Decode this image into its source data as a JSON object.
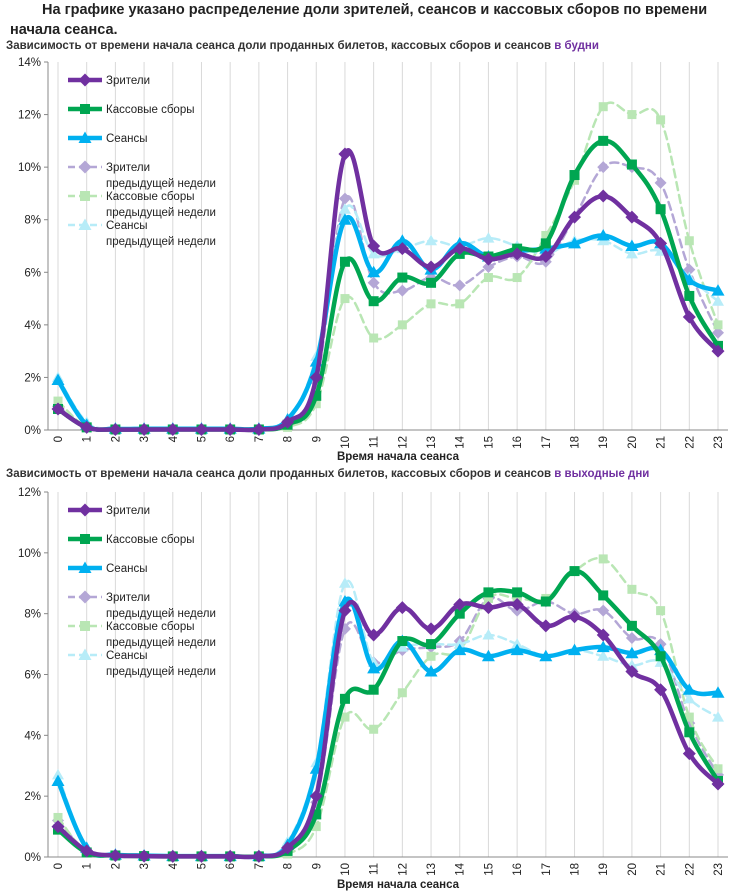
{
  "heading": "На графике указано распределение доли зрителей, сеансов и кассовых сборов по времени начала сеанса.",
  "chart_data": [
    {
      "type": "line",
      "title": "Зависимость от времени начала сеанса доли проданных билетов, кассовых сборов и сеансов",
      "title_accent": "в будни",
      "xlabel": "Время начала сеанса",
      "ylabel": "",
      "ylim": [
        0,
        14
      ],
      "yticks": [
        "0%",
        "2%",
        "4%",
        "6%",
        "8%",
        "10%",
        "12%",
        "14%"
      ],
      "categories": [
        "0",
        "1",
        "2",
        "3",
        "4",
        "5",
        "6",
        "7",
        "8",
        "9",
        "10",
        "11",
        "12",
        "13",
        "14",
        "15",
        "16",
        "17",
        "18",
        "19",
        "20",
        "21",
        "22",
        "23"
      ],
      "grid": "vertical",
      "legend": "top-left",
      "series": [
        {
          "name": "Зрители",
          "color": "#7030a0",
          "dashed": false,
          "marker": "diamond",
          "values": [
            0.8,
            0.1,
            0.02,
            0.02,
            0.02,
            0.02,
            0.02,
            0.02,
            0.3,
            2.0,
            10.5,
            7.0,
            6.9,
            6.2,
            6.9,
            6.5,
            6.7,
            6.6,
            8.1,
            8.9,
            8.1,
            7.1,
            4.3,
            3.0
          ]
        },
        {
          "name": "Кассовые сборы",
          "color": "#00a651",
          "dashed": false,
          "marker": "square",
          "values": [
            0.8,
            0.1,
            0.02,
            0.02,
            0.02,
            0.02,
            0.02,
            0.02,
            0.2,
            1.3,
            6.4,
            4.9,
            5.8,
            5.6,
            6.7,
            6.6,
            6.9,
            7.1,
            9.7,
            11.0,
            10.1,
            8.4,
            5.1,
            3.2
          ]
        },
        {
          "name": "Сеансы",
          "color": "#00b0f0",
          "dashed": false,
          "marker": "triangle",
          "values": [
            1.9,
            0.2,
            0.05,
            0.05,
            0.05,
            0.05,
            0.05,
            0.05,
            0.4,
            2.6,
            8.0,
            6.0,
            7.2,
            6.1,
            7.1,
            6.6,
            6.8,
            6.9,
            7.1,
            7.4,
            7.0,
            7.1,
            5.7,
            5.3
          ]
        },
        {
          "name": "Зрители предыдущей недели",
          "color": "#b4a7d6",
          "dashed": true,
          "marker": "diamond",
          "values": [
            0.9,
            0.1,
            0.02,
            0.02,
            0.02,
            0.02,
            0.02,
            0.02,
            0.2,
            1.8,
            8.8,
            5.6,
            5.3,
            5.8,
            5.5,
            6.2,
            6.6,
            6.4,
            8.1,
            10.0,
            10.0,
            9.4,
            6.1,
            3.7
          ]
        },
        {
          "name": "Кассовые сборы предыдущей недели",
          "color": "#b9e6b4",
          "dashed": true,
          "marker": "square",
          "values": [
            1.1,
            0.1,
            0.02,
            0.02,
            0.02,
            0.02,
            0.02,
            0.02,
            0.1,
            1.0,
            5.0,
            3.5,
            4.0,
            4.8,
            4.8,
            5.8,
            5.8,
            7.4,
            9.5,
            12.3,
            12.0,
            11.8,
            7.2,
            4.0
          ]
        },
        {
          "name": "Сеансы предыдущей недели",
          "color": "#b7ecf8",
          "dashed": true,
          "marker": "triangle",
          "values": [
            2.0,
            0.3,
            0.05,
            0.05,
            0.05,
            0.05,
            0.05,
            0.05,
            0.4,
            2.8,
            8.4,
            6.7,
            6.9,
            7.2,
            7.0,
            7.3,
            7.0,
            6.7,
            7.2,
            7.2,
            6.7,
            6.8,
            5.8,
            4.9
          ]
        }
      ]
    },
    {
      "type": "line",
      "title": "Зависимость от времени начала сеанса доли проданных билетов, кассовых сборов и сеансов",
      "title_accent": "в выходные дни",
      "xlabel": "Время начала сеанса",
      "ylabel": "",
      "ylim": [
        0,
        12
      ],
      "yticks": [
        "0%",
        "2%",
        "4%",
        "6%",
        "8%",
        "10%",
        "12%"
      ],
      "categories": [
        "0",
        "1",
        "2",
        "3",
        "4",
        "5",
        "6",
        "7",
        "8",
        "9",
        "10",
        "11",
        "12",
        "13",
        "14",
        "15",
        "16",
        "17",
        "18",
        "19",
        "20",
        "21",
        "22",
        "23"
      ],
      "grid": "vertical",
      "legend": "top-left",
      "series": [
        {
          "name": "Зрители",
          "color": "#7030a0",
          "dashed": false,
          "marker": "diamond",
          "values": [
            1.0,
            0.2,
            0.05,
            0.03,
            0.02,
            0.02,
            0.02,
            0.02,
            0.3,
            2.0,
            8.1,
            7.3,
            8.2,
            7.5,
            8.3,
            8.2,
            8.3,
            7.6,
            7.9,
            7.3,
            6.1,
            5.5,
            3.4,
            2.4
          ]
        },
        {
          "name": "Кассовые сборы",
          "color": "#00a651",
          "dashed": false,
          "marker": "square",
          "values": [
            0.9,
            0.15,
            0.05,
            0.03,
            0.02,
            0.02,
            0.02,
            0.02,
            0.2,
            1.4,
            5.2,
            5.5,
            7.1,
            7.0,
            8.0,
            8.7,
            8.7,
            8.4,
            9.4,
            8.6,
            7.6,
            6.6,
            4.1,
            2.5
          ]
        },
        {
          "name": "Сеансы",
          "color": "#00b0f0",
          "dashed": false,
          "marker": "triangle",
          "values": [
            2.5,
            0.3,
            0.08,
            0.05,
            0.03,
            0.03,
            0.03,
            0.03,
            0.4,
            2.9,
            8.4,
            6.2,
            7.1,
            6.1,
            6.8,
            6.6,
            6.8,
            6.6,
            6.8,
            6.9,
            6.7,
            6.8,
            5.5,
            5.4
          ]
        },
        {
          "name": "Зрители предыдущей недели",
          "color": "#b4a7d6",
          "dashed": true,
          "marker": "diamond",
          "values": [
            1.2,
            0.2,
            0.05,
            0.03,
            0.02,
            0.02,
            0.02,
            0.02,
            0.2,
            1.8,
            7.5,
            6.4,
            6.8,
            6.9,
            7.1,
            8.5,
            8.1,
            8.4,
            8.0,
            8.1,
            7.2,
            7.0,
            4.4,
            2.7
          ]
        },
        {
          "name": "Кассовые сборы предыдущей недели",
          "color": "#b9e6b4",
          "dashed": true,
          "marker": "square",
          "values": [
            1.3,
            0.15,
            0.05,
            0.03,
            0.02,
            0.02,
            0.02,
            0.02,
            0.1,
            1.0,
            4.6,
            4.2,
            5.4,
            6.6,
            6.8,
            8.5,
            8.5,
            8.5,
            9.4,
            9.8,
            8.8,
            8.1,
            4.6,
            2.9
          ]
        },
        {
          "name": "Сеансы предыдущей недели",
          "color": "#b7ecf8",
          "dashed": true,
          "marker": "triangle",
          "values": [
            2.7,
            0.3,
            0.08,
            0.05,
            0.03,
            0.03,
            0.03,
            0.03,
            0.5,
            3.1,
            9.0,
            6.4,
            6.9,
            7.0,
            7.0,
            7.3,
            7.0,
            6.6,
            6.8,
            6.6,
            6.3,
            6.4,
            5.2,
            4.6
          ]
        }
      ]
    }
  ]
}
